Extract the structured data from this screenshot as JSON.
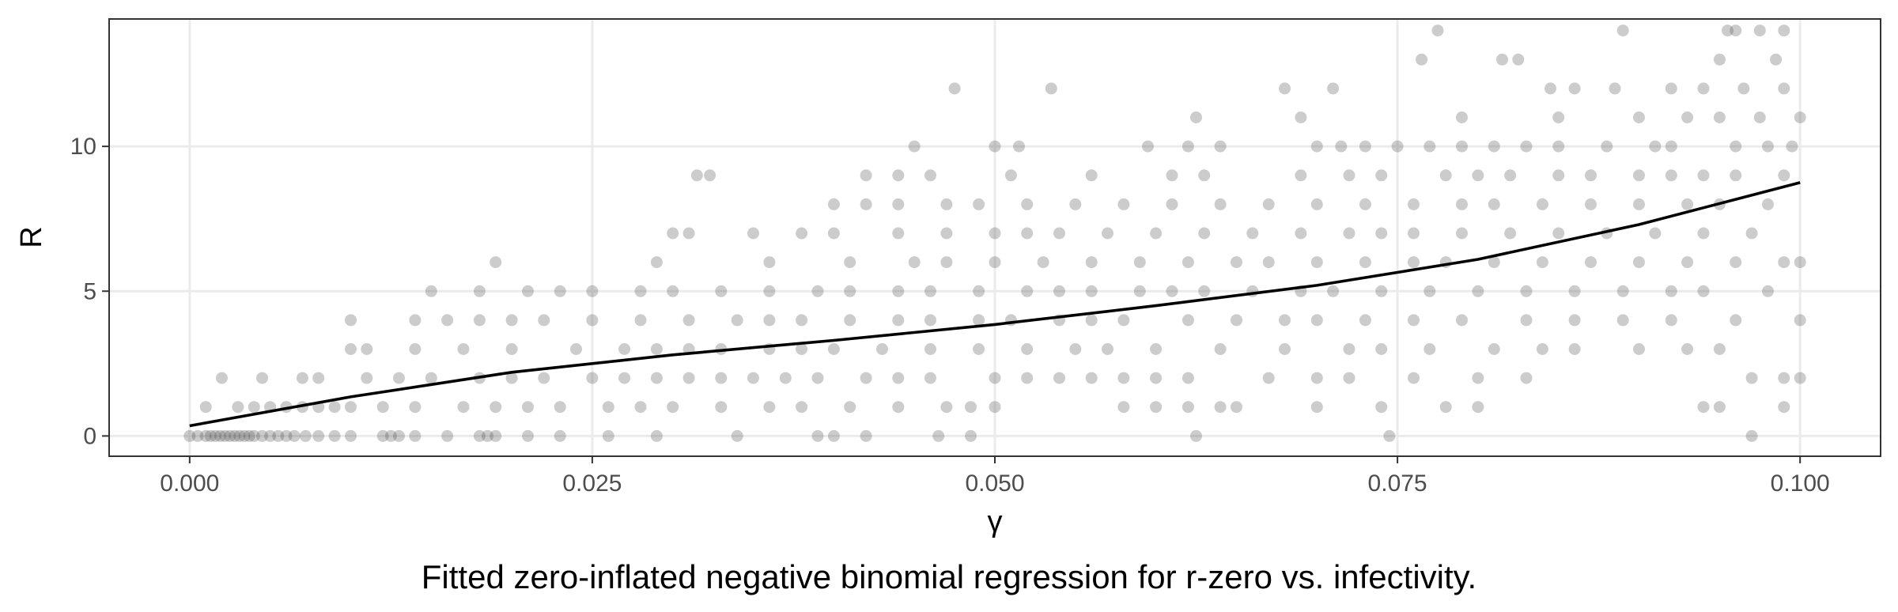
{
  "caption": "Fitted zero-inflated negative binomial regression for r-zero vs. infectivity.",
  "chart_data": {
    "type": "scatter",
    "title": "",
    "xlabel": "γ",
    "ylabel": "R",
    "xlim": [
      -0.005,
      0.105
    ],
    "ylim": [
      -0.7,
      14.4
    ],
    "x_ticks": [
      0.0,
      0.025,
      0.05,
      0.075,
      0.1
    ],
    "x_tick_labels": [
      "0.000",
      "0.025",
      "0.050",
      "0.075",
      "0.100"
    ],
    "y_ticks": [
      0,
      5,
      10
    ],
    "y_tick_labels": [
      "0",
      "5",
      "10"
    ],
    "grid": true,
    "legend": "none",
    "point_color": "#555555",
    "point_alpha": 0.3,
    "line_color": "#000000",
    "points": [
      [
        0.0,
        0
      ],
      [
        0.0005,
        0
      ],
      [
        0.001,
        0
      ],
      [
        0.0013,
        0
      ],
      [
        0.0016,
        0
      ],
      [
        0.0019,
        0
      ],
      [
        0.0022,
        0
      ],
      [
        0.0025,
        0
      ],
      [
        0.0028,
        0
      ],
      [
        0.0031,
        0
      ],
      [
        0.0034,
        0
      ],
      [
        0.0037,
        0
      ],
      [
        0.004,
        0
      ],
      [
        0.0045,
        0
      ],
      [
        0.005,
        0
      ],
      [
        0.0055,
        0
      ],
      [
        0.006,
        0
      ],
      [
        0.0065,
        0
      ],
      [
        0.0072,
        0
      ],
      [
        0.008,
        0
      ],
      [
        0.009,
        0
      ],
      [
        0.01,
        0
      ],
      [
        0.012,
        0
      ],
      [
        0.0125,
        0
      ],
      [
        0.013,
        0
      ],
      [
        0.014,
        0
      ],
      [
        0.016,
        0
      ],
      [
        0.018,
        0
      ],
      [
        0.0185,
        0
      ],
      [
        0.019,
        0
      ],
      [
        0.021,
        0
      ],
      [
        0.023,
        0
      ],
      [
        0.026,
        0
      ],
      [
        0.029,
        0
      ],
      [
        0.034,
        0
      ],
      [
        0.039,
        0
      ],
      [
        0.04,
        0
      ],
      [
        0.042,
        0
      ],
      [
        0.0465,
        0
      ],
      [
        0.0485,
        0
      ],
      [
        0.0625,
        0
      ],
      [
        0.0745,
        0
      ],
      [
        0.097,
        0
      ],
      [
        0.001,
        1
      ],
      [
        0.003,
        1
      ],
      [
        0.004,
        1
      ],
      [
        0.005,
        1
      ],
      [
        0.006,
        1
      ],
      [
        0.007,
        1
      ],
      [
        0.008,
        1
      ],
      [
        0.009,
        1
      ],
      [
        0.01,
        1
      ],
      [
        0.012,
        1
      ],
      [
        0.014,
        1
      ],
      [
        0.017,
        1
      ],
      [
        0.019,
        1
      ],
      [
        0.021,
        1
      ],
      [
        0.023,
        1
      ],
      [
        0.026,
        1
      ],
      [
        0.028,
        1
      ],
      [
        0.03,
        1
      ],
      [
        0.033,
        1
      ],
      [
        0.036,
        1
      ],
      [
        0.038,
        1
      ],
      [
        0.041,
        1
      ],
      [
        0.044,
        1
      ],
      [
        0.047,
        1
      ],
      [
        0.0485,
        1
      ],
      [
        0.05,
        1
      ],
      [
        0.058,
        1
      ],
      [
        0.06,
        1
      ],
      [
        0.062,
        1
      ],
      [
        0.064,
        1
      ],
      [
        0.065,
        1
      ],
      [
        0.07,
        1
      ],
      [
        0.074,
        1
      ],
      [
        0.078,
        1
      ],
      [
        0.08,
        1
      ],
      [
        0.094,
        1
      ],
      [
        0.095,
        1
      ],
      [
        0.099,
        1
      ],
      [
        0.002,
        2
      ],
      [
        0.0045,
        2
      ],
      [
        0.007,
        2
      ],
      [
        0.008,
        2
      ],
      [
        0.011,
        2
      ],
      [
        0.013,
        2
      ],
      [
        0.015,
        2
      ],
      [
        0.018,
        2
      ],
      [
        0.02,
        2
      ],
      [
        0.022,
        2
      ],
      [
        0.025,
        2
      ],
      [
        0.027,
        2
      ],
      [
        0.029,
        2
      ],
      [
        0.031,
        2
      ],
      [
        0.033,
        2
      ],
      [
        0.035,
        2
      ],
      [
        0.037,
        2
      ],
      [
        0.039,
        2
      ],
      [
        0.042,
        2
      ],
      [
        0.044,
        2
      ],
      [
        0.046,
        2
      ],
      [
        0.05,
        2
      ],
      [
        0.052,
        2
      ],
      [
        0.054,
        2
      ],
      [
        0.056,
        2
      ],
      [
        0.058,
        2
      ],
      [
        0.06,
        2
      ],
      [
        0.062,
        2
      ],
      [
        0.067,
        2
      ],
      [
        0.07,
        2
      ],
      [
        0.072,
        2
      ],
      [
        0.076,
        2
      ],
      [
        0.08,
        2
      ],
      [
        0.083,
        2
      ],
      [
        0.097,
        2
      ],
      [
        0.099,
        2
      ],
      [
        0.1,
        2
      ],
      [
        0.01,
        3
      ],
      [
        0.011,
        3
      ],
      [
        0.014,
        3
      ],
      [
        0.017,
        3
      ],
      [
        0.02,
        3
      ],
      [
        0.024,
        3
      ],
      [
        0.027,
        3
      ],
      [
        0.029,
        3
      ],
      [
        0.031,
        3
      ],
      [
        0.033,
        3
      ],
      [
        0.036,
        3
      ],
      [
        0.038,
        3
      ],
      [
        0.04,
        3
      ],
      [
        0.043,
        3
      ],
      [
        0.046,
        3
      ],
      [
        0.049,
        3
      ],
      [
        0.052,
        3
      ],
      [
        0.055,
        3
      ],
      [
        0.057,
        3
      ],
      [
        0.06,
        3
      ],
      [
        0.064,
        3
      ],
      [
        0.068,
        3
      ],
      [
        0.072,
        3
      ],
      [
        0.074,
        3
      ],
      [
        0.077,
        3
      ],
      [
        0.081,
        3
      ],
      [
        0.084,
        3
      ],
      [
        0.086,
        3
      ],
      [
        0.09,
        3
      ],
      [
        0.093,
        3
      ],
      [
        0.095,
        3
      ],
      [
        0.01,
        4
      ],
      [
        0.014,
        4
      ],
      [
        0.016,
        4
      ],
      [
        0.018,
        4
      ],
      [
        0.02,
        4
      ],
      [
        0.022,
        4
      ],
      [
        0.025,
        4
      ],
      [
        0.028,
        4
      ],
      [
        0.031,
        4
      ],
      [
        0.034,
        4
      ],
      [
        0.036,
        4
      ],
      [
        0.038,
        4
      ],
      [
        0.041,
        4
      ],
      [
        0.044,
        4
      ],
      [
        0.046,
        4
      ],
      [
        0.049,
        4
      ],
      [
        0.051,
        4
      ],
      [
        0.054,
        4
      ],
      [
        0.056,
        4
      ],
      [
        0.058,
        4
      ],
      [
        0.062,
        4
      ],
      [
        0.065,
        4
      ],
      [
        0.068,
        4
      ],
      [
        0.07,
        4
      ],
      [
        0.073,
        4
      ],
      [
        0.076,
        4
      ],
      [
        0.079,
        4
      ],
      [
        0.083,
        4
      ],
      [
        0.086,
        4
      ],
      [
        0.089,
        4
      ],
      [
        0.092,
        4
      ],
      [
        0.096,
        4
      ],
      [
        0.1,
        4
      ],
      [
        0.015,
        5
      ],
      [
        0.018,
        5
      ],
      [
        0.021,
        5
      ],
      [
        0.023,
        5
      ],
      [
        0.025,
        5
      ],
      [
        0.028,
        5
      ],
      [
        0.03,
        5
      ],
      [
        0.033,
        5
      ],
      [
        0.036,
        5
      ],
      [
        0.039,
        5
      ],
      [
        0.041,
        5
      ],
      [
        0.044,
        5
      ],
      [
        0.046,
        5
      ],
      [
        0.049,
        5
      ],
      [
        0.052,
        5
      ],
      [
        0.054,
        5
      ],
      [
        0.056,
        5
      ],
      [
        0.059,
        5
      ],
      [
        0.061,
        5
      ],
      [
        0.063,
        5
      ],
      [
        0.066,
        5
      ],
      [
        0.069,
        5
      ],
      [
        0.071,
        5
      ],
      [
        0.074,
        5
      ],
      [
        0.077,
        5
      ],
      [
        0.08,
        5
      ],
      [
        0.083,
        5
      ],
      [
        0.086,
        5
      ],
      [
        0.089,
        5
      ],
      [
        0.092,
        5
      ],
      [
        0.094,
        5
      ],
      [
        0.098,
        5
      ],
      [
        0.019,
        6
      ],
      [
        0.029,
        6
      ],
      [
        0.036,
        6
      ],
      [
        0.041,
        6
      ],
      [
        0.045,
        6
      ],
      [
        0.047,
        6
      ],
      [
        0.05,
        6
      ],
      [
        0.053,
        6
      ],
      [
        0.056,
        6
      ],
      [
        0.059,
        6
      ],
      [
        0.062,
        6
      ],
      [
        0.065,
        6
      ],
      [
        0.067,
        6
      ],
      [
        0.07,
        6
      ],
      [
        0.073,
        6
      ],
      [
        0.076,
        6
      ],
      [
        0.078,
        6
      ],
      [
        0.081,
        6
      ],
      [
        0.084,
        6
      ],
      [
        0.087,
        6
      ],
      [
        0.09,
        6
      ],
      [
        0.093,
        6
      ],
      [
        0.096,
        6
      ],
      [
        0.099,
        6
      ],
      [
        0.1,
        6
      ],
      [
        0.03,
        7
      ],
      [
        0.031,
        7
      ],
      [
        0.035,
        7
      ],
      [
        0.038,
        7
      ],
      [
        0.04,
        7
      ],
      [
        0.044,
        7
      ],
      [
        0.047,
        7
      ],
      [
        0.05,
        7
      ],
      [
        0.052,
        7
      ],
      [
        0.054,
        7
      ],
      [
        0.057,
        7
      ],
      [
        0.06,
        7
      ],
      [
        0.063,
        7
      ],
      [
        0.066,
        7
      ],
      [
        0.069,
        7
      ],
      [
        0.072,
        7
      ],
      [
        0.074,
        7
      ],
      [
        0.076,
        7
      ],
      [
        0.079,
        7
      ],
      [
        0.082,
        7
      ],
      [
        0.085,
        7
      ],
      [
        0.088,
        7
      ],
      [
        0.091,
        7
      ],
      [
        0.094,
        7
      ],
      [
        0.097,
        7
      ],
      [
        0.04,
        8
      ],
      [
        0.042,
        8
      ],
      [
        0.044,
        8
      ],
      [
        0.047,
        8
      ],
      [
        0.049,
        8
      ],
      [
        0.052,
        8
      ],
      [
        0.055,
        8
      ],
      [
        0.058,
        8
      ],
      [
        0.061,
        8
      ],
      [
        0.064,
        8
      ],
      [
        0.067,
        8
      ],
      [
        0.07,
        8
      ],
      [
        0.073,
        8
      ],
      [
        0.076,
        8
      ],
      [
        0.079,
        8
      ],
      [
        0.081,
        8
      ],
      [
        0.084,
        8
      ],
      [
        0.087,
        8
      ],
      [
        0.09,
        8
      ],
      [
        0.093,
        8
      ],
      [
        0.095,
        8
      ],
      [
        0.098,
        8
      ],
      [
        0.0315,
        9
      ],
      [
        0.0323,
        9
      ],
      [
        0.042,
        9
      ],
      [
        0.044,
        9
      ],
      [
        0.046,
        9
      ],
      [
        0.051,
        9
      ],
      [
        0.056,
        9
      ],
      [
        0.061,
        9
      ],
      [
        0.063,
        9
      ],
      [
        0.069,
        9
      ],
      [
        0.072,
        9
      ],
      [
        0.074,
        9
      ],
      [
        0.078,
        9
      ],
      [
        0.08,
        9
      ],
      [
        0.082,
        9
      ],
      [
        0.085,
        9
      ],
      [
        0.087,
        9
      ],
      [
        0.09,
        9
      ],
      [
        0.092,
        9
      ],
      [
        0.094,
        9
      ],
      [
        0.096,
        9
      ],
      [
        0.099,
        9
      ],
      [
        0.045,
        10
      ],
      [
        0.05,
        10
      ],
      [
        0.0515,
        10
      ],
      [
        0.0595,
        10
      ],
      [
        0.062,
        10
      ],
      [
        0.064,
        10
      ],
      [
        0.07,
        10
      ],
      [
        0.0715,
        10
      ],
      [
        0.073,
        10
      ],
      [
        0.075,
        10
      ],
      [
        0.077,
        10
      ],
      [
        0.079,
        10
      ],
      [
        0.081,
        10
      ],
      [
        0.083,
        10
      ],
      [
        0.085,
        10
      ],
      [
        0.088,
        10
      ],
      [
        0.091,
        10
      ],
      [
        0.092,
        10
      ],
      [
        0.096,
        10
      ],
      [
        0.098,
        10
      ],
      [
        0.0995,
        10
      ],
      [
        0.0625,
        11
      ],
      [
        0.069,
        11
      ],
      [
        0.079,
        11
      ],
      [
        0.085,
        11
      ],
      [
        0.09,
        11
      ],
      [
        0.093,
        11
      ],
      [
        0.095,
        11
      ],
      [
        0.0975,
        11
      ],
      [
        0.1,
        11
      ],
      [
        0.0475,
        12
      ],
      [
        0.0535,
        12
      ],
      [
        0.068,
        12
      ],
      [
        0.071,
        12
      ],
      [
        0.0845,
        12
      ],
      [
        0.086,
        12
      ],
      [
        0.0885,
        12
      ],
      [
        0.092,
        12
      ],
      [
        0.094,
        12
      ],
      [
        0.0965,
        12
      ],
      [
        0.099,
        12
      ],
      [
        0.0815,
        13
      ],
      [
        0.0825,
        13
      ],
      [
        0.0765,
        13
      ],
      [
        0.095,
        13
      ],
      [
        0.0985,
        13
      ],
      [
        0.0775,
        14
      ],
      [
        0.089,
        14
      ],
      [
        0.0955,
        14
      ],
      [
        0.096,
        14
      ],
      [
        0.0975,
        14
      ],
      [
        0.099,
        14
      ]
    ],
    "fit_line": {
      "name": "",
      "x": [
        0.0,
        0.01,
        0.02,
        0.03,
        0.04,
        0.05,
        0.06,
        0.07,
        0.08,
        0.09,
        0.1
      ],
      "y": [
        0.35,
        1.35,
        2.2,
        2.8,
        3.3,
        3.85,
        4.5,
        5.2,
        6.1,
        7.3,
        8.75
      ]
    }
  }
}
